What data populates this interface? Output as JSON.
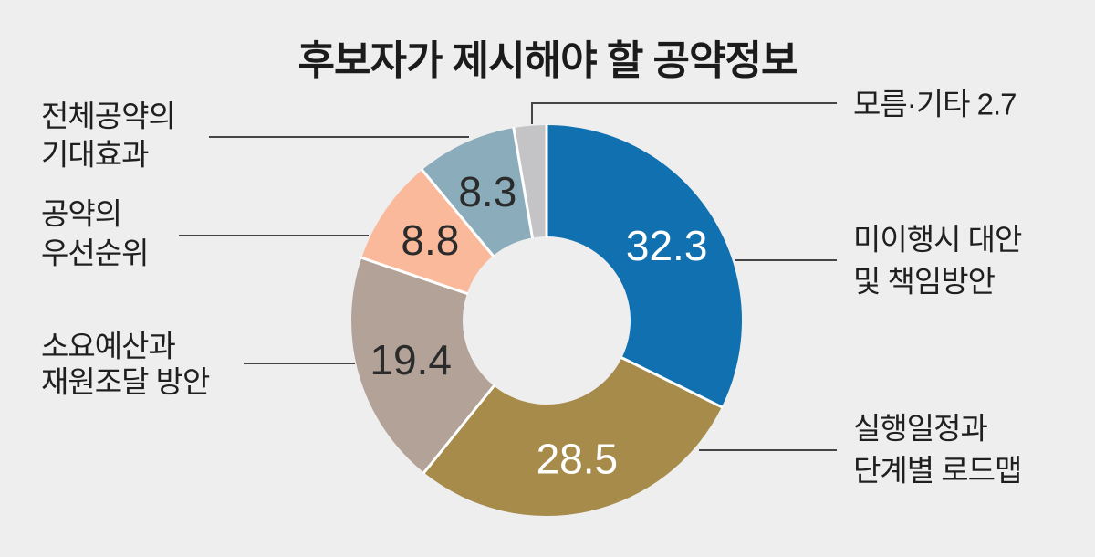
{
  "background_color": "#eeeeef",
  "title_color": "#1b1b1b",
  "label_text_color": "#1f1f1f",
  "leader_line_color": "#454545",
  "separator_color": "#ffffff",
  "chart_data": {
    "type": "pie",
    "subtype": "donut",
    "title": "후보자가 제시해야 할 공약정보",
    "total": 100,
    "start_angle_deg": 0,
    "direction": "clockwise",
    "grid": false,
    "legend_position": "callouts",
    "segments": [
      {
        "label": "미이행시 대안 및 책임방안",
        "label_lines": [
          "미이행시 대안",
          "및 책임방안"
        ],
        "value": 32.3,
        "color": "#1170af",
        "value_label_color": "#ffffff",
        "value_inside": true,
        "callout_side": "right"
      },
      {
        "label": "실행일정과 단계별 로드맵",
        "label_lines": [
          "실행일정과",
          "단계별 로드맵"
        ],
        "value": 28.5,
        "color": "#a68b4a",
        "value_label_color": "#ffffff",
        "value_inside": true,
        "callout_side": "right"
      },
      {
        "label": "소요예산과 재원조달 방안",
        "label_lines": [
          "소요예산과",
          "재원조달 방안"
        ],
        "value": 19.4,
        "color": "#b2a298",
        "value_label_color": "#2b2b2b",
        "value_inside": true,
        "callout_side": "left"
      },
      {
        "label": "공약의 우선순위",
        "label_lines": [
          "공약의",
          "우선순위"
        ],
        "value": 8.8,
        "color": "#fab99a",
        "value_label_color": "#2b2b2b",
        "value_inside": true,
        "callout_side": "left"
      },
      {
        "label": "전체공약의 기대효과",
        "label_lines": [
          "전체공약의",
          "기대효과"
        ],
        "value": 8.3,
        "color": "#8aacbb",
        "value_label_color": "#2b2b2b",
        "value_inside": true,
        "callout_side": "left"
      },
      {
        "label": "모름·기타",
        "label_lines": [
          "모름·기타"
        ],
        "value": 2.7,
        "color": "#c4c4c6",
        "value_label_color": "#1f1f1f",
        "value_inside": false,
        "callout_side": "right"
      }
    ]
  }
}
